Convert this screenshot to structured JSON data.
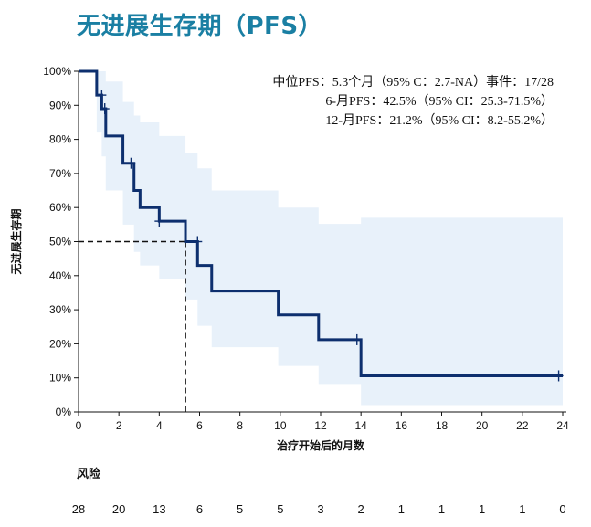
{
  "title": "无进展生存期（PFS）",
  "risk_table": {
    "label": "风险",
    "counts": [
      "28",
      "20",
      "13",
      "6",
      "5",
      "5",
      "3",
      "2",
      "1",
      "1",
      "1",
      "1",
      "0"
    ]
  },
  "annotations": [
    "中位PFS：5.3个月（95% C：2.7-NA）事件：17/28",
    "6-月PFS：42.5%（95% CI：25.3-71.5%）",
    "12-月PFS：21.2%（95% CI：8.2-55.2%）"
  ],
  "colors": {
    "title": "#1a7fa3",
    "curve": "#0d2f6e",
    "ci_band": "#e8f1fa"
  },
  "chart_data": {
    "type": "line",
    "subtype": "kaplan-meier step",
    "title": "无进展生存期（PFS）",
    "xlabel": "治疗开始后的月数",
    "ylabel": "无进展生存期",
    "xlim": [
      0,
      24
    ],
    "ylim": [
      0,
      100
    ],
    "x_ticks": [
      0,
      2,
      4,
      6,
      8,
      10,
      12,
      14,
      16,
      18,
      20,
      22,
      24
    ],
    "y_ticks": [
      "0%",
      "10%",
      "20%",
      "30%",
      "40%",
      "50%",
      "60%",
      "70%",
      "80%",
      "90%",
      "100%"
    ],
    "y_tick_values": [
      0,
      10,
      20,
      30,
      40,
      50,
      60,
      70,
      80,
      90,
      100
    ],
    "grid": false,
    "series": [
      {
        "steps": [
          [
            0,
            100
          ],
          [
            0.9,
            100
          ],
          [
            0.9,
            93
          ],
          [
            1.15,
            93
          ],
          [
            1.15,
            89
          ],
          [
            1.35,
            89
          ],
          [
            1.35,
            81
          ],
          [
            2.2,
            81
          ],
          [
            2.2,
            73
          ],
          [
            2.75,
            73
          ],
          [
            2.75,
            65
          ],
          [
            3.05,
            65
          ],
          [
            3.05,
            60
          ],
          [
            4.0,
            60
          ],
          [
            4.0,
            56
          ],
          [
            5.3,
            56
          ],
          [
            5.3,
            50
          ],
          [
            5.9,
            50
          ],
          [
            5.9,
            43
          ],
          [
            6.6,
            43
          ],
          [
            6.6,
            35.5
          ],
          [
            9.9,
            35.5
          ],
          [
            9.9,
            28.5
          ],
          [
            11.9,
            28.5
          ],
          [
            11.9,
            21.2
          ],
          [
            14.0,
            21.2
          ],
          [
            14.0,
            10.6
          ],
          [
            24.0,
            10.6
          ]
        ],
        "censor_marks": [
          [
            1.15,
            93
          ],
          [
            1.3,
            89
          ],
          [
            2.6,
            73
          ],
          [
            4.0,
            56
          ],
          [
            5.9,
            50
          ],
          [
            13.8,
            21.2
          ],
          [
            23.8,
            10.6
          ]
        ]
      }
    ],
    "ci_band": {
      "upper": [
        [
          0,
          100
        ],
        [
          1.35,
          100
        ],
        [
          1.35,
          97
        ],
        [
          2.2,
          97
        ],
        [
          2.2,
          91
        ],
        [
          2.75,
          91
        ],
        [
          2.75,
          87
        ],
        [
          3.05,
          87
        ],
        [
          3.05,
          85
        ],
        [
          4.0,
          85
        ],
        [
          4.0,
          81
        ],
        [
          5.3,
          81
        ],
        [
          5.3,
          76
        ],
        [
          5.9,
          76
        ],
        [
          5.9,
          71.5
        ],
        [
          6.6,
          71.5
        ],
        [
          6.6,
          65
        ],
        [
          9.9,
          65
        ],
        [
          9.9,
          60
        ],
        [
          11.9,
          60
        ],
        [
          11.9,
          55.2
        ],
        [
          14.0,
          55.2
        ],
        [
          14.0,
          57
        ],
        [
          24.0,
          57
        ]
      ],
      "lower": [
        [
          0,
          100
        ],
        [
          0.9,
          100
        ],
        [
          0.9,
          82
        ],
        [
          1.15,
          82
        ],
        [
          1.15,
          75
        ],
        [
          1.35,
          75
        ],
        [
          1.35,
          65
        ],
        [
          2.2,
          65
        ],
        [
          2.2,
          55
        ],
        [
          2.75,
          55
        ],
        [
          2.75,
          47
        ],
        [
          3.05,
          47
        ],
        [
          3.05,
          43
        ],
        [
          4.0,
          43
        ],
        [
          4.0,
          39
        ],
        [
          5.3,
          39
        ],
        [
          5.3,
          33
        ],
        [
          5.9,
          33
        ],
        [
          5.9,
          25.3
        ],
        [
          6.6,
          25.3
        ],
        [
          6.6,
          19
        ],
        [
          9.9,
          19
        ],
        [
          9.9,
          13.5
        ],
        [
          11.9,
          13.5
        ],
        [
          11.9,
          8.2
        ],
        [
          14.0,
          8.2
        ],
        [
          14.0,
          2
        ],
        [
          24.0,
          2
        ]
      ]
    },
    "median_marker": {
      "x": 5.3,
      "y": 50
    }
  }
}
